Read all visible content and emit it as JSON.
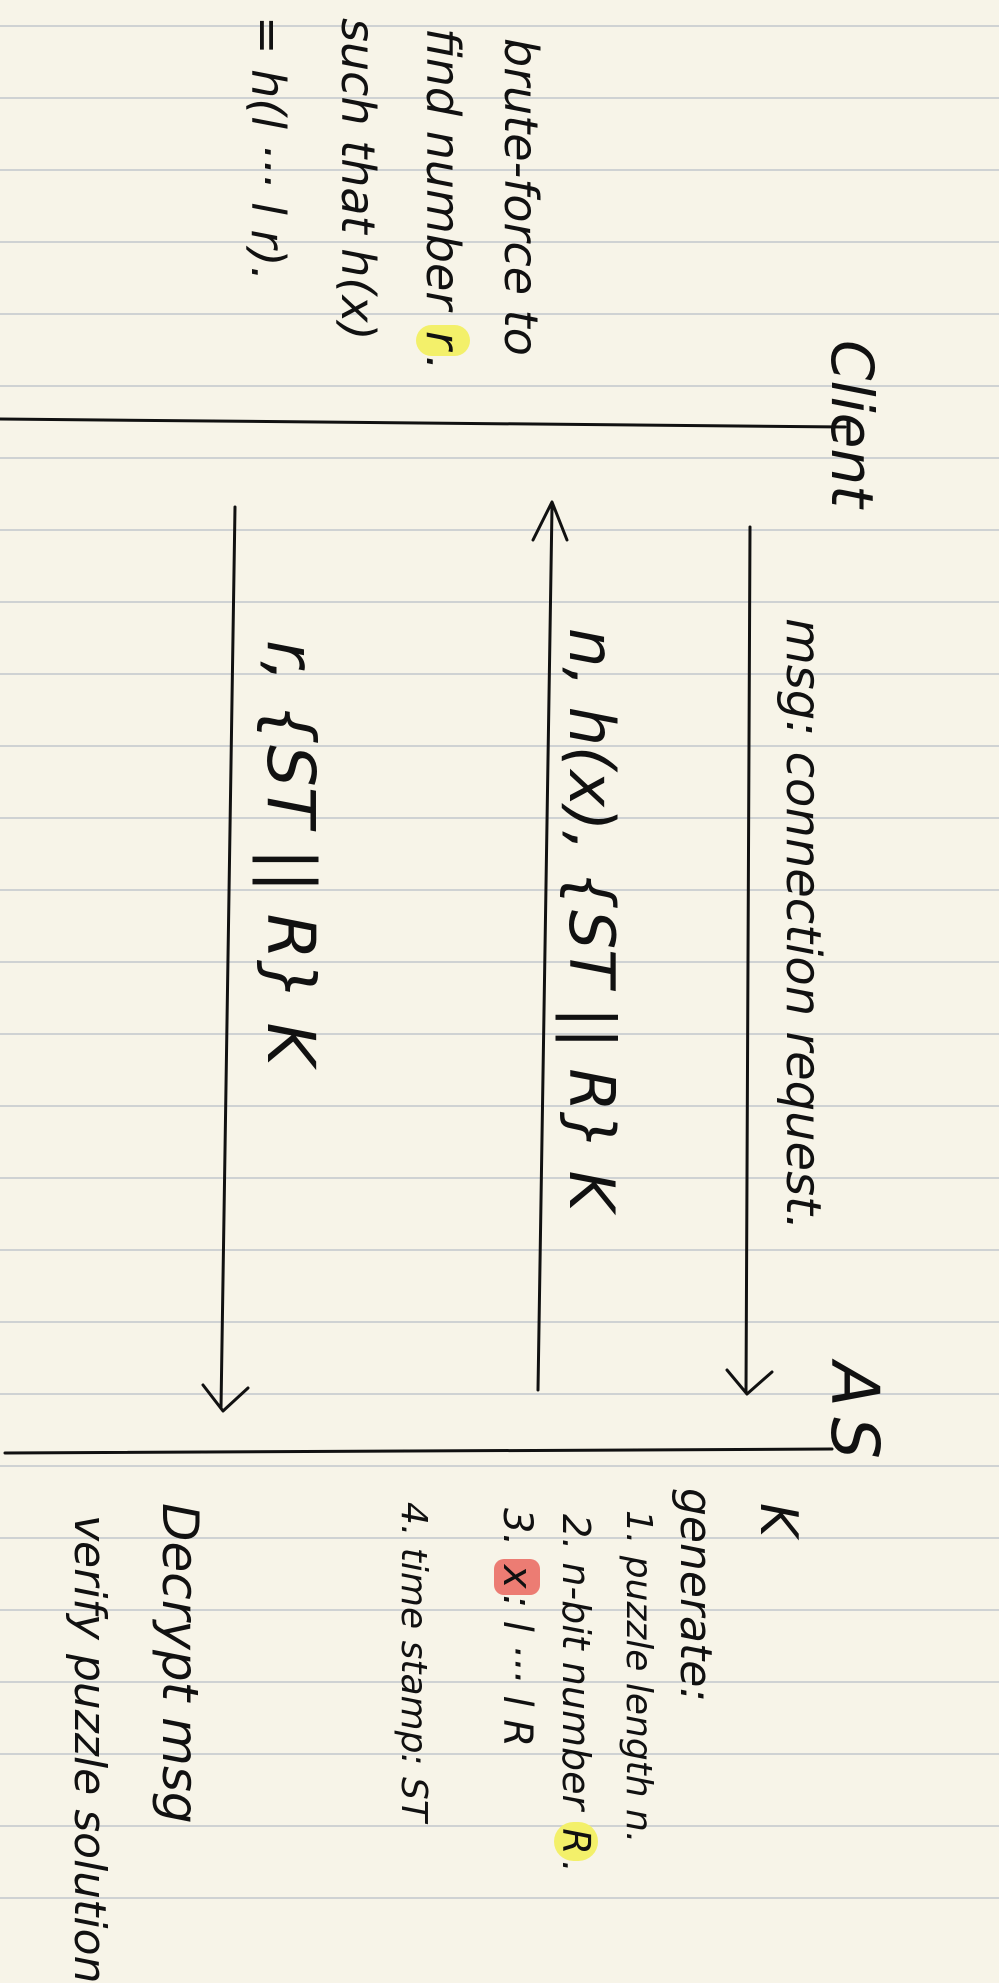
{
  "colors": {
    "paper": "#f7f4e8",
    "rule_line": "#cfd2d3",
    "ink": "#111111",
    "highlight_yellow": "#f3f06a",
    "highlight_red": "#ec7c73"
  },
  "parties": {
    "client": "Client",
    "server": "AS"
  },
  "messages": {
    "m1": "msg: connection request.",
    "m2": "n, h(x), {ST || R} K",
    "m3": "r, {ST || R} K"
  },
  "client_note": {
    "line1": "brute-force to",
    "line2_prefix": "find number",
    "line2_var": "r",
    "line2_suffix": ".",
    "line3": "such that h(x)",
    "line4": "= h(l ··· l r)."
  },
  "server_note": {
    "key": "K",
    "title": "generate:",
    "item1": "1. puzzle length n.",
    "item2_prefix": "2. n-bit number",
    "item2_var": "R",
    "item2_suffix": ".",
    "item3_prefix": "3.",
    "item3_var": "x",
    "item3_suffix": ": l ··· l R",
    "item4": "4. time stamp: ST"
  },
  "server_final": {
    "line1": "Decrypt msg",
    "line2": "verify puzzle solution"
  }
}
